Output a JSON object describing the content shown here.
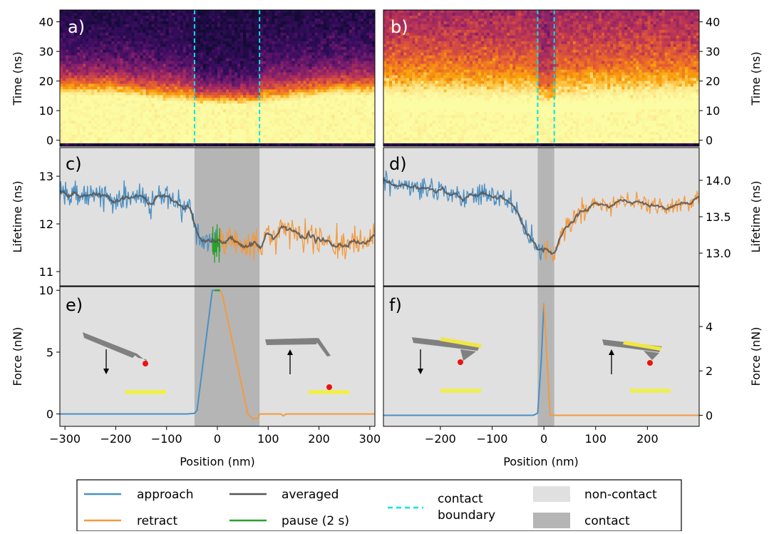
{
  "chart_data": [
    {
      "id": "a",
      "panel_label": "a)",
      "type": "heatmap",
      "ylabel": "Time (ns)",
      "ylim": [
        -2,
        44
      ],
      "xlim": [
        -310,
        310
      ],
      "yticks": [
        0,
        10,
        20,
        30,
        40
      ],
      "contact_boundaries": [
        -45,
        83
      ],
      "bright_edge_ns_far": 15,
      "bright_edge_ns_contact": 12,
      "colormap": [
        "#130b35",
        "#3a0d62",
        "#7b1d6c",
        "#b83357",
        "#e8622e",
        "#fba40a",
        "#fde78a",
        "#fbfca4"
      ]
    },
    {
      "id": "b",
      "panel_label": "b)",
      "type": "heatmap",
      "ylabel": "Time (ns)",
      "ylim": [
        -2,
        44
      ],
      "xlim": [
        -310,
        300
      ],
      "yticks": [
        0,
        10,
        20,
        30,
        40
      ],
      "contact_boundaries": [
        -12,
        20
      ],
      "bright_edge_ns_far": 10,
      "bright_edge_ns_contact": 9
    },
    {
      "id": "c",
      "panel_label": "c)",
      "type": "line",
      "ylabel": "Lifetime (ns)",
      "xlim": [
        -310,
        310
      ],
      "ylim": [
        10.7,
        13.6
      ],
      "yticks": [
        11,
        12,
        13
      ],
      "contact_region": [
        -45,
        83
      ],
      "approach_profile": {
        "x": [
          -310,
          -200,
          -100,
          -60,
          -45,
          -30,
          -10,
          0
        ],
        "y": [
          12.6,
          12.6,
          12.5,
          12.35,
          12.0,
          11.6,
          11.55,
          11.6
        ]
      },
      "pause_profile": {
        "x": [
          -10,
          5
        ],
        "y": [
          11.6,
          11.6
        ]
      },
      "retract_profile": {
        "x": [
          0,
          40,
          70,
          130,
          200,
          250,
          310
        ],
        "y": [
          11.6,
          11.55,
          11.5,
          11.9,
          11.65,
          11.55,
          11.7
        ]
      },
      "noise_approach": 0.3,
      "noise_retract": 0.3
    },
    {
      "id": "d",
      "panel_label": "d)",
      "type": "line",
      "ylabel": "Lifetime (ns)",
      "xlim": [
        -310,
        300
      ],
      "ylim": [
        12.55,
        14.45
      ],
      "yticks": [
        13.0,
        13.5,
        14.0
      ],
      "contact_region": [
        -12,
        20
      ],
      "approach_profile": {
        "x": [
          -310,
          -250,
          -200,
          -150,
          -100,
          -60,
          -30,
          -10,
          0
        ],
        "y": [
          14.0,
          13.9,
          13.85,
          13.75,
          13.8,
          13.65,
          13.3,
          13.05,
          13.0
        ]
      },
      "retract_profile": {
        "x": [
          0,
          15,
          40,
          80,
          150,
          200,
          250,
          300
        ],
        "y": [
          13.0,
          13.0,
          13.3,
          13.6,
          13.7,
          13.65,
          13.65,
          13.75
        ]
      },
      "noise_approach": 0.14,
      "noise_retract": 0.15
    },
    {
      "id": "e",
      "panel_label": "e)",
      "type": "line",
      "ylabel": "Force (nN)",
      "xlabel": "Position (nm)",
      "xlim": [
        -310,
        310
      ],
      "ylim": [
        -1.0,
        10.3
      ],
      "yticks": [
        0,
        5,
        10
      ],
      "xticks": [
        -300,
        -200,
        -100,
        0,
        100,
        200,
        300
      ],
      "contact_region": [
        -45,
        83
      ],
      "approach": {
        "x": [
          -310,
          -60,
          -45,
          -40,
          -10,
          -5
        ],
        "y": [
          0,
          0,
          0.05,
          0.3,
          10,
          10
        ]
      },
      "pause": {
        "x": [
          -5,
          5
        ],
        "y": [
          10,
          10
        ]
      },
      "retract": {
        "x": [
          5,
          10,
          60,
          70,
          80,
          83,
          125,
          130,
          135,
          310
        ],
        "y": [
          10,
          9.6,
          0,
          -0.4,
          -0.35,
          0,
          0,
          -0.15,
          0,
          0
        ]
      }
    },
    {
      "id": "f",
      "panel_label": "f)",
      "type": "line",
      "ylabel": "Force (nN)",
      "xlabel": "Position (nm)",
      "xlim": [
        -310,
        300
      ],
      "ylim": [
        -0.5,
        5.8
      ],
      "yticks": [
        0,
        2,
        4
      ],
      "xticks": [
        -200,
        -100,
        0,
        100,
        200
      ],
      "contact_region": [
        -12,
        20
      ],
      "approach": {
        "x": [
          -310,
          -20,
          -12,
          -5,
          0
        ],
        "y": [
          0,
          0,
          0.1,
          2.5,
          5.05
        ]
      },
      "retract": {
        "x": [
          0,
          12,
          20,
          300
        ],
        "y": [
          5.05,
          0,
          0,
          0
        ]
      }
    }
  ],
  "legend": {
    "approach": "approach",
    "retract": "retract",
    "averaged": "averaged",
    "pause": "pause (2 s)",
    "contact_boundary_line1": "contact",
    "contact_boundary_line2": "boundary",
    "non_contact": "non-contact",
    "contact": "contact"
  },
  "colors": {
    "approach": "#4a90c4",
    "retract": "#f39a3e",
    "averaged": "#555555",
    "pause": "#2ca02c",
    "boundary": "#00e5e5",
    "non_contact": "#e0e0e0",
    "contact": "#b5b5b5",
    "surface": "#eeee55",
    "particle": "#ee1111",
    "cantilever": "#808080",
    "tip_coating": "#f2e640"
  }
}
